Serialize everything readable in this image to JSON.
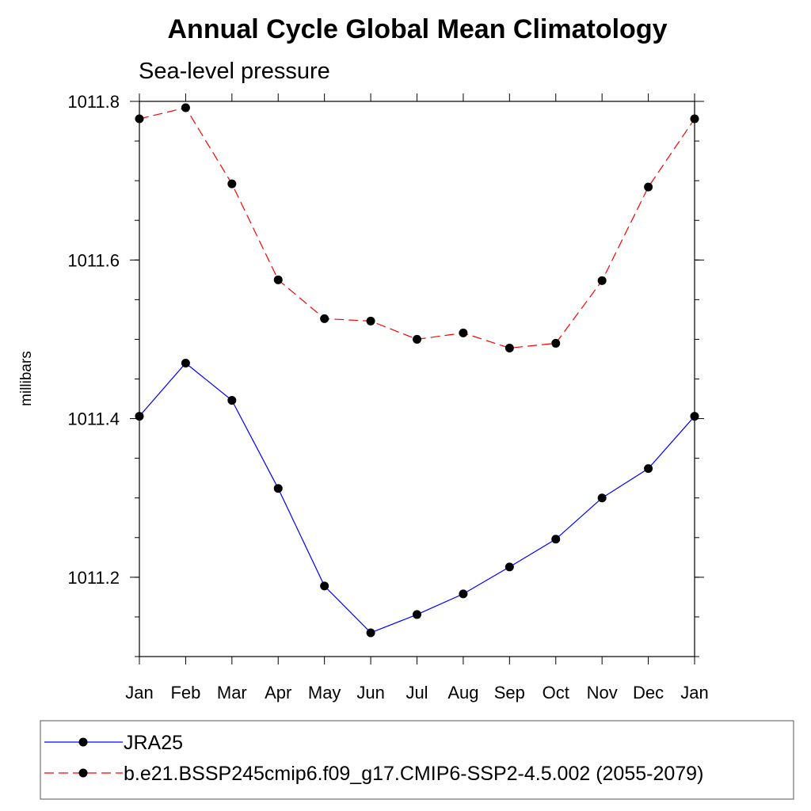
{
  "chart_data": {
    "type": "line",
    "title": "Annual Cycle Global Mean Climatology",
    "subtitle": "Sea-level pressure",
    "xlabel": "",
    "ylabel": "millibars",
    "categories": [
      "Jan",
      "Feb",
      "Mar",
      "Apr",
      "May",
      "Jun",
      "Jul",
      "Aug",
      "Sep",
      "Oct",
      "Nov",
      "Dec",
      "Jan"
    ],
    "ylim": [
      1011.1,
      1011.8
    ],
    "yticks": [
      1011.2,
      1011.4,
      1011.6,
      1011.8
    ],
    "ytick_labels": [
      "1011.2",
      "1011.4",
      "1011.6",
      "1011.8"
    ],
    "series": [
      {
        "name": "JRA25",
        "color": "#0000ff",
        "dash": "solid",
        "values": [
          1011.403,
          1011.47,
          1011.423,
          1011.312,
          1011.189,
          1011.13,
          1011.153,
          1011.179,
          1011.213,
          1011.248,
          1011.3,
          1011.337,
          1011.403
        ]
      },
      {
        "name": "b.e21.BSSP245cmip6.f09_g17.CMIP6-SSP2-4.5.002 (2055-2079)",
        "color": "#ff0000",
        "dash": "dashed",
        "values": [
          1011.778,
          1011.792,
          1011.696,
          1011.575,
          1011.526,
          1011.523,
          1011.5,
          1011.508,
          1011.489,
          1011.495,
          1011.574,
          1011.692,
          1011.778
        ]
      }
    ],
    "legend_position": "bottom"
  }
}
